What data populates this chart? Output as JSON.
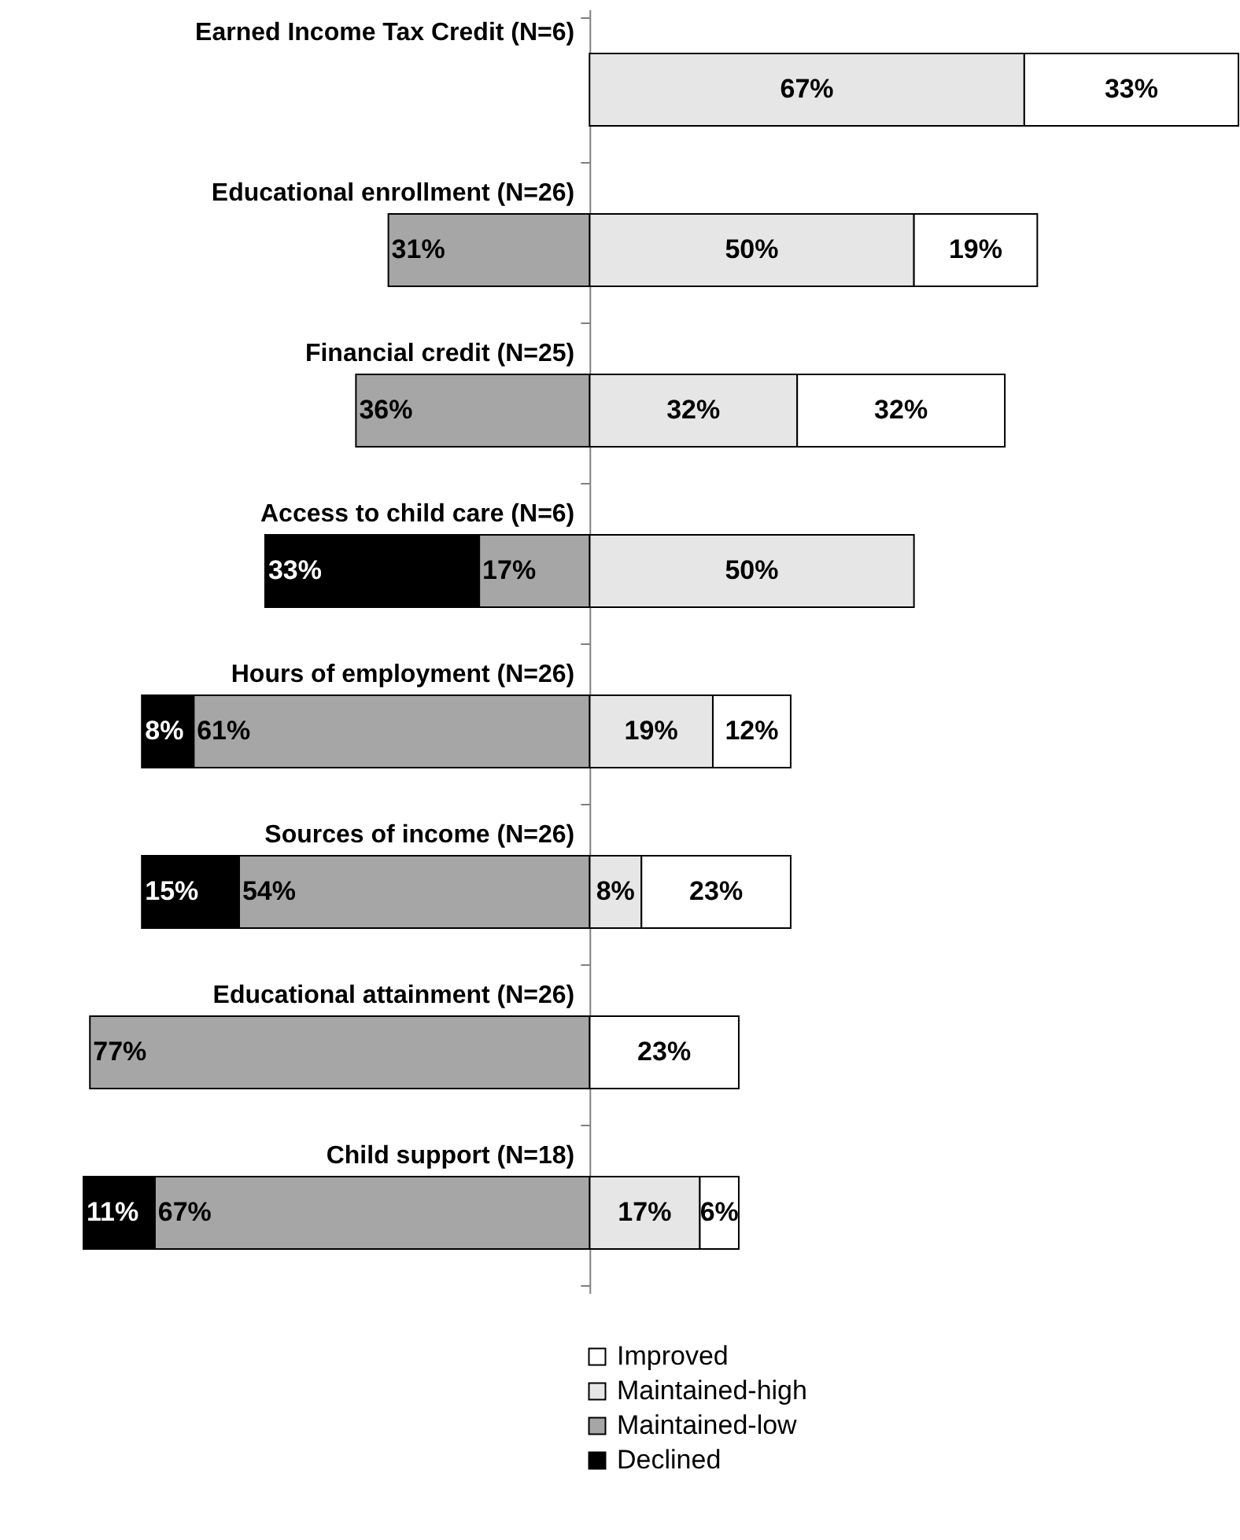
{
  "chart_data": {
    "type": "bar",
    "orientation": "horizontal",
    "stacked": true,
    "legend": "bottom",
    "grid": false,
    "categories": [
      "Earned Income Tax Credit (N=6)",
      "Educational enrollment (N=26)",
      "Financial credit (N=25)",
      "Access to child care (N=6)",
      "Hours of employment (N=26)",
      "Sources of income (N=26)",
      "Educational attainment (N=26)",
      "Child support (N=18)"
    ],
    "series": [
      {
        "name": "Maintained-high",
        "color": "#e6e6e6",
        "values": [
          67,
          50,
          32,
          50,
          19,
          8,
          null,
          17
        ],
        "value_labels": [
          "67%",
          "50%",
          "32%",
          "50%",
          "19%",
          "8%",
          null,
          "17%"
        ]
      },
      {
        "name": "Improved",
        "color": "#ffffff",
        "values": [
          33,
          19,
          32,
          null,
          12,
          23,
          23,
          6
        ],
        "value_labels": [
          "33%",
          "19%",
          "32%",
          null,
          "12%",
          "23%",
          "23%",
          "6%"
        ]
      },
      {
        "name": "Maintained-low",
        "color": "#a6a6a6",
        "values": [
          null,
          -31,
          -36,
          -17,
          -61,
          -54,
          -77,
          -67
        ]
      },
      {
        "name": "Declined",
        "color": "#000000",
        "values": [
          null,
          null,
          null,
          -33,
          -8,
          -15,
          null,
          -11
        ]
      }
    ],
    "annotations": [
      {
        "text": "31%",
        "x": -31,
        "y": "Educational enrollment (N=26)"
      },
      {
        "text": "36%",
        "x": -36,
        "y": "Financial credit (N=25)"
      },
      {
        "text": "17%",
        "x": -17,
        "y": "Access to child care (N=6)"
      },
      {
        "text": "33%",
        "x": -50,
        "y": "Access to child care (N=6)"
      },
      {
        "text": "61%",
        "x": -61,
        "y": "Hours of employment (N=26)"
      },
      {
        "text": "8%",
        "x": -69,
        "y": "Hours of employment (N=26)"
      },
      {
        "text": "54%",
        "x": -54,
        "y": "Sources of income (N=26)"
      },
      {
        "text": "15%",
        "x": -69,
        "y": "Sources of income (N=26)"
      },
      {
        "text": "77%",
        "x": -77,
        "y": "Educational attainment (N=26)"
      },
      {
        "text": "67%",
        "x": -67,
        "y": "Child support (N=18)"
      },
      {
        "text": "11%",
        "x": -78,
        "y": "Child support (N=18)"
      }
    ]
  }
}
